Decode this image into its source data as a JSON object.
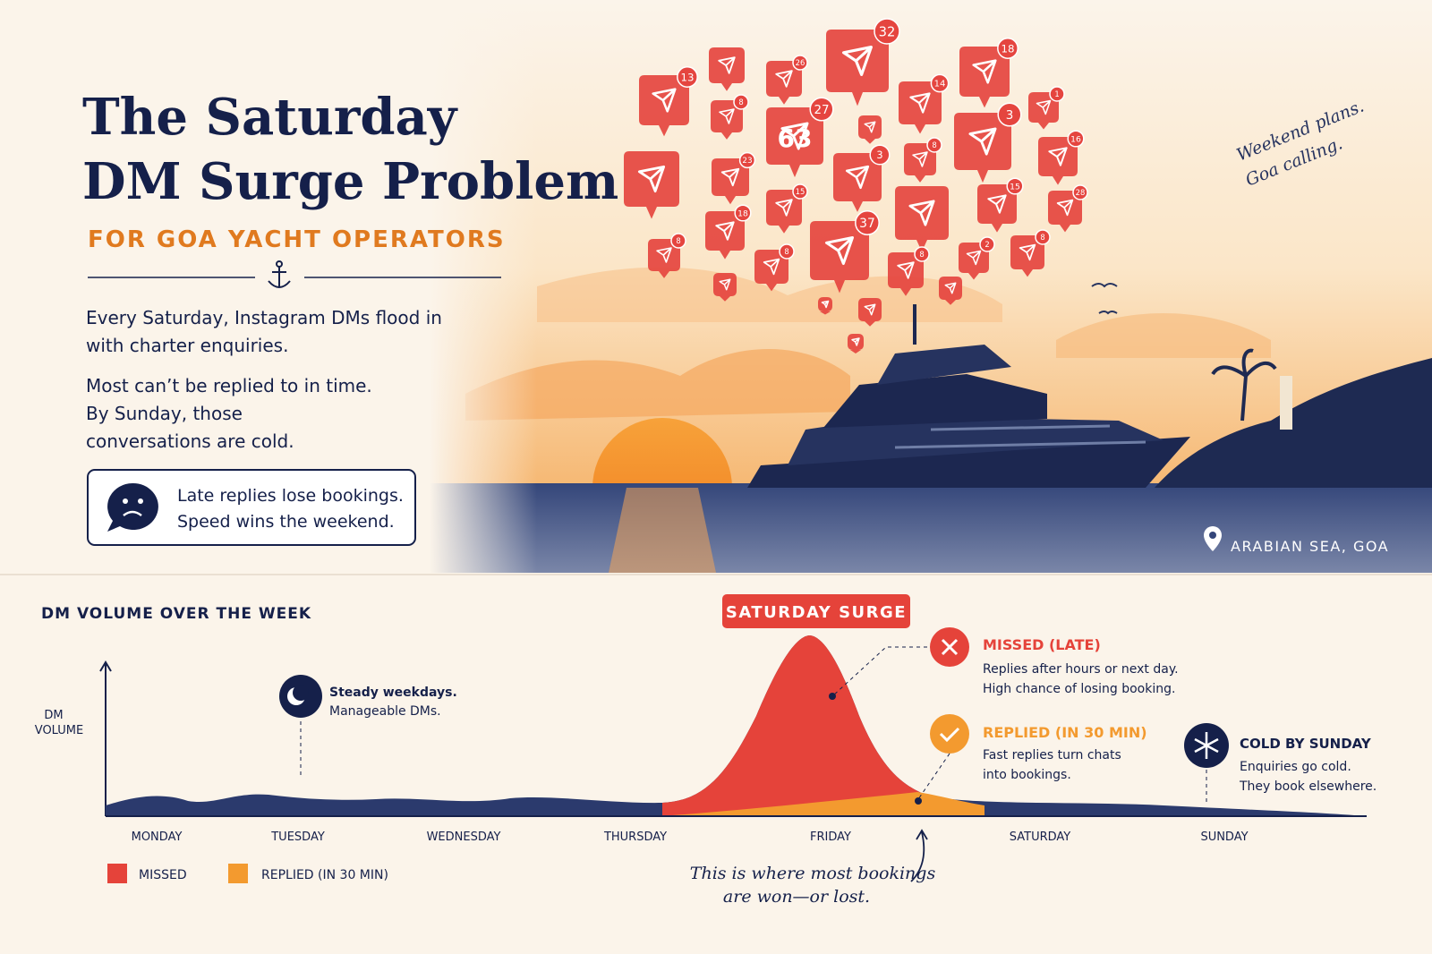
{
  "header": {
    "title_line_1": "The Saturday",
    "title_line_2": "DM Surge Problem",
    "subtitle": "FOR GOA YACHT OPERATORS",
    "paragraph_1": "Every Saturday, Instagram DMs flood in with charter enquiries.",
    "paragraph_2": "Most can’t be replied to in time. By Sunday, those conversations are cold.",
    "callout_line_1": "Late replies lose bookings.",
    "callout_line_2": "Speed wins the weekend."
  },
  "scene": {
    "featured_count": "63",
    "badges": [
      "13",
      "26",
      "32",
      "18",
      "8",
      "27",
      "14",
      "1",
      "3",
      "8",
      "16",
      "23",
      "3",
      "15",
      "15",
      "28",
      "18",
      "37",
      "8",
      "8",
      "8",
      "2",
      "8"
    ],
    "handwriting_line_1": "Weekend plans.",
    "handwriting_line_2": "Goa calling.",
    "location": "ARABIAN SEA, GOA"
  },
  "chart": {
    "title": "DM VOLUME OVER THE WEEK",
    "y_label_line_1": "DM",
    "y_label_line_2": "VOLUME",
    "days": [
      "MONDAY",
      "TUESDAY",
      "WEDNESDAY",
      "THURSDAY",
      "FRIDAY",
      "SATURDAY",
      "SUNDAY"
    ],
    "surge_label": "SATURDAY SURGE",
    "weekday_note": {
      "title": "Steady weekdays.",
      "text": "Manageable DMs."
    },
    "missed_note": {
      "title": "MISSED (LATE)",
      "line_1": "Replies after hours or next day.",
      "line_2": "High chance of losing booking."
    },
    "replied_note": {
      "title": "REPLIED (IN 30 MIN)",
      "line_1": "Fast replies turn chats",
      "line_2": "into bookings."
    },
    "sunday_note": {
      "title": "COLD BY SUNDAY",
      "line_1": "Enquiries go cold.",
      "line_2": "They book elsewhere."
    },
    "legend": [
      "MISSED",
      "REPLIED (IN 30 MIN)"
    ],
    "bottom_note_line_1": "This is where most bookings",
    "bottom_note_line_2": "are won—or lost."
  }
}
